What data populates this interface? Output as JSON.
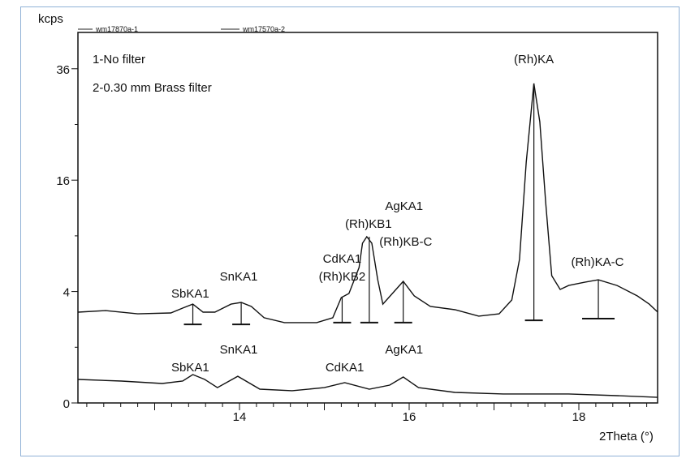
{
  "chart_data": {
    "type": "line",
    "title": "",
    "xlabel": "2Theta (°)",
    "ylabel": "kcps",
    "xlim": [
      12.1,
      18.93
    ],
    "ylim": [
      0,
      44
    ],
    "y_scale": "sqrt",
    "x_ticks": [
      14,
      16,
      18
    ],
    "y_ticks": [
      0,
      4,
      16,
      36
    ],
    "grid": false,
    "legend_position": "top",
    "legend": [
      "wm17870a-1",
      "wm17570a-2"
    ],
    "notes": [
      "1-No filter",
      "2-0.30 mm Brass filter"
    ],
    "series": [
      {
        "name": "wm17870a-1",
        "x": [
          12.1,
          12.42,
          12.8,
          13.19,
          13.33,
          13.45,
          13.57,
          13.71,
          13.9,
          14.02,
          14.14,
          14.29,
          14.53,
          14.91,
          15.1,
          15.2,
          15.29,
          15.41,
          15.45,
          15.5,
          15.56,
          15.63,
          15.69,
          15.82,
          15.93,
          16.06,
          16.25,
          16.54,
          16.82,
          17.06,
          17.21,
          17.3,
          17.38,
          17.47,
          17.54,
          17.61,
          17.68,
          17.78,
          17.88,
          18.07,
          18.23,
          18.45,
          18.69,
          18.83,
          18.93
        ],
        "y": [
          2.66,
          2.75,
          2.56,
          2.61,
          2.9,
          3.15,
          2.66,
          2.66,
          3.15,
          3.26,
          3.0,
          2.34,
          2.08,
          2.08,
          2.34,
          3.58,
          3.86,
          5.91,
          8.22,
          8.9,
          8.22,
          4.89,
          3.15,
          3.98,
          4.77,
          3.69,
          3.0,
          2.8,
          2.43,
          2.56,
          3.42,
          6.64,
          18.7,
          32.9,
          25.5,
          12.9,
          5.22,
          4.15,
          4.45,
          4.7,
          4.89,
          4.45,
          3.69,
          3.15,
          2.66
        ]
      },
      {
        "name": "wm17570a-2",
        "x": [
          12.1,
          12.61,
          13.09,
          13.33,
          13.45,
          13.59,
          13.74,
          13.98,
          14.24,
          14.62,
          15.0,
          15.24,
          15.53,
          15.77,
          15.93,
          16.11,
          16.54,
          17.11,
          17.88,
          18.45,
          18.93
        ],
        "y": [
          0.178,
          0.154,
          0.122,
          0.154,
          0.26,
          0.178,
          0.076,
          0.23,
          0.061,
          0.048,
          0.076,
          0.132,
          0.061,
          0.103,
          0.217,
          0.076,
          0.036,
          0.026,
          0.026,
          0.017,
          0.01
        ]
      }
    ],
    "peak_markers": [
      {
        "x": 13.45,
        "top": 3.15,
        "base": 1.99
      },
      {
        "x": 14.02,
        "top": 3.26,
        "base": 1.99
      },
      {
        "x": 15.21,
        "top": 3.58,
        "base": 2.08
      },
      {
        "x": 15.53,
        "top": 8.9,
        "base": 2.08
      },
      {
        "x": 15.93,
        "top": 4.77,
        "base": 2.08
      },
      {
        "x": 17.47,
        "top": 32.9,
        "base": 2.2
      },
      {
        "x": 18.23,
        "top": 4.89,
        "base": 2.29,
        "wide": true
      }
    ],
    "annotations": [
      {
        "text": "SbKA1",
        "x": 13.42,
        "y": 3.58
      },
      {
        "text": "SnKA1",
        "x": 13.99,
        "y": 4.83
      },
      {
        "text": "CdKA1",
        "x": 15.21,
        "y": 6.34
      },
      {
        "text": "(Rh)KB2",
        "x": 15.21,
        "y": 4.83
      },
      {
        "text": "(Rh)KB1",
        "x": 15.52,
        "y": 9.89
      },
      {
        "text": "AgKA1",
        "x": 15.94,
        "y": 12.0
      },
      {
        "text": "(Rh)KB-C",
        "x": 15.96,
        "y": 7.97
      },
      {
        "text": "(Rh)KA",
        "x": 17.47,
        "y": 37.2
      },
      {
        "text": "(Rh)KA-C",
        "x": 18.22,
        "y": 6.05
      },
      {
        "text": "SbKA1",
        "x": 13.42,
        "y": 0.322
      },
      {
        "text": "SnKA1",
        "x": 13.99,
        "y": 0.788
      },
      {
        "text": "CdKA1",
        "x": 15.24,
        "y": 0.322
      },
      {
        "text": "AgKA1",
        "x": 15.94,
        "y": 0.788
      }
    ]
  }
}
